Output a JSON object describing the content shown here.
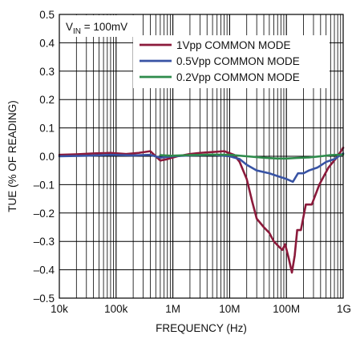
{
  "chart_data": {
    "type": "line",
    "xlabel": "FREQUENCY (Hz)",
    "ylabel": "TUE (% OF READING)",
    "x_scale": "log",
    "xlim": [
      10000,
      1000000000
    ],
    "ylim": [
      -0.5,
      0.5
    ],
    "x_ticks": [
      {
        "value": 10000,
        "label": "10k"
      },
      {
        "value": 100000,
        "label": "100k"
      },
      {
        "value": 1000000,
        "label": "1M"
      },
      {
        "value": 10000000,
        "label": "10M"
      },
      {
        "value": 100000000,
        "label": "100M"
      },
      {
        "value": 1000000000,
        "label": "1G"
      }
    ],
    "y_ticks": [
      {
        "value": 0.5,
        "label": "0.5"
      },
      {
        "value": 0.4,
        "label": "0.4"
      },
      {
        "value": 0.3,
        "label": "0.3"
      },
      {
        "value": 0.2,
        "label": "0.2"
      },
      {
        "value": 0.1,
        "label": "0.1"
      },
      {
        "value": 0.0,
        "label": "0.0"
      },
      {
        "value": -0.1,
        "label": "–0.1"
      },
      {
        "value": -0.2,
        "label": "–0.2"
      },
      {
        "value": -0.3,
        "label": "–0.3"
      },
      {
        "value": -0.4,
        "label": "–0.4"
      },
      {
        "value": -0.5,
        "label": "–0.5"
      }
    ],
    "grid": true,
    "legend_position": "top-right",
    "annotation": {
      "main": "V",
      "sub": "IN",
      "rest": " = 100mV"
    },
    "series": [
      {
        "name": "1Vpp COMMON MODE",
        "color": "#8b1a3b",
        "points": [
          [
            10000,
            0.005
          ],
          [
            20000,
            0.007
          ],
          [
            40000,
            0.01
          ],
          [
            80000,
            0.012
          ],
          [
            150000,
            0.008
          ],
          [
            250000,
            0.012
          ],
          [
            400000,
            0.018
          ],
          [
            600000,
            -0.015
          ],
          [
            800000,
            -0.01
          ],
          [
            1200000,
            0.0
          ],
          [
            2000000,
            0.008
          ],
          [
            3000000,
            0.012
          ],
          [
            5000000,
            0.015
          ],
          [
            8000000,
            0.018
          ],
          [
            12000000,
            0.005
          ],
          [
            15000000,
            -0.02
          ],
          [
            20000000,
            -0.08
          ],
          [
            25000000,
            -0.16
          ],
          [
            30000000,
            -0.22
          ],
          [
            40000000,
            -0.25
          ],
          [
            50000000,
            -0.27
          ],
          [
            60000000,
            -0.3
          ],
          [
            75000000,
            -0.32
          ],
          [
            85000000,
            -0.33
          ],
          [
            95000000,
            -0.31
          ],
          [
            110000000,
            -0.36
          ],
          [
            125000000,
            -0.41
          ],
          [
            140000000,
            -0.35
          ],
          [
            155000000,
            -0.26
          ],
          [
            180000000,
            -0.26
          ],
          [
            220000000,
            -0.17
          ],
          [
            280000000,
            -0.17
          ],
          [
            380000000,
            -0.1
          ],
          [
            550000000,
            -0.04
          ],
          [
            800000000,
            0.0
          ],
          [
            1000000000,
            0.03
          ]
        ]
      },
      {
        "name": "0.5Vpp COMMON MODE",
        "color": "#3853a4",
        "points": [
          [
            10000,
            0.0
          ],
          [
            30000,
            0.002
          ],
          [
            80000,
            0.005
          ],
          [
            200000,
            0.003
          ],
          [
            400000,
            0.005
          ],
          [
            600000,
            -0.005
          ],
          [
            1000000,
            0.0
          ],
          [
            2000000,
            0.003
          ],
          [
            5000000,
            0.005
          ],
          [
            10000000,
            0.0
          ],
          [
            15000000,
            -0.01
          ],
          [
            20000000,
            -0.03
          ],
          [
            30000000,
            -0.05
          ],
          [
            50000000,
            -0.06
          ],
          [
            70000000,
            -0.07
          ],
          [
            100000000,
            -0.08
          ],
          [
            130000000,
            -0.09
          ],
          [
            160000000,
            -0.06
          ],
          [
            200000000,
            -0.06
          ],
          [
            250000000,
            -0.05
          ],
          [
            350000000,
            -0.04
          ],
          [
            500000000,
            -0.02
          ],
          [
            700000000,
            -0.01
          ],
          [
            1000000000,
            0.01
          ]
        ]
      },
      {
        "name": "0.2Vpp COMMON MODE",
        "color": "#2e8b4b",
        "points": [
          [
            600000,
            0.004
          ],
          [
            900000,
            0.002
          ],
          [
            2000000,
            0.004
          ],
          [
            5000000,
            0.006
          ],
          [
            10000000,
            0.005
          ],
          [
            20000000,
            0.0
          ],
          [
            40000000,
            -0.005
          ],
          [
            70000000,
            -0.008
          ],
          [
            100000000,
            -0.008
          ],
          [
            150000000,
            -0.006
          ],
          [
            250000000,
            -0.004
          ],
          [
            400000000,
            0.0
          ],
          [
            600000000,
            0.004
          ],
          [
            1000000000,
            0.006
          ]
        ]
      }
    ]
  }
}
